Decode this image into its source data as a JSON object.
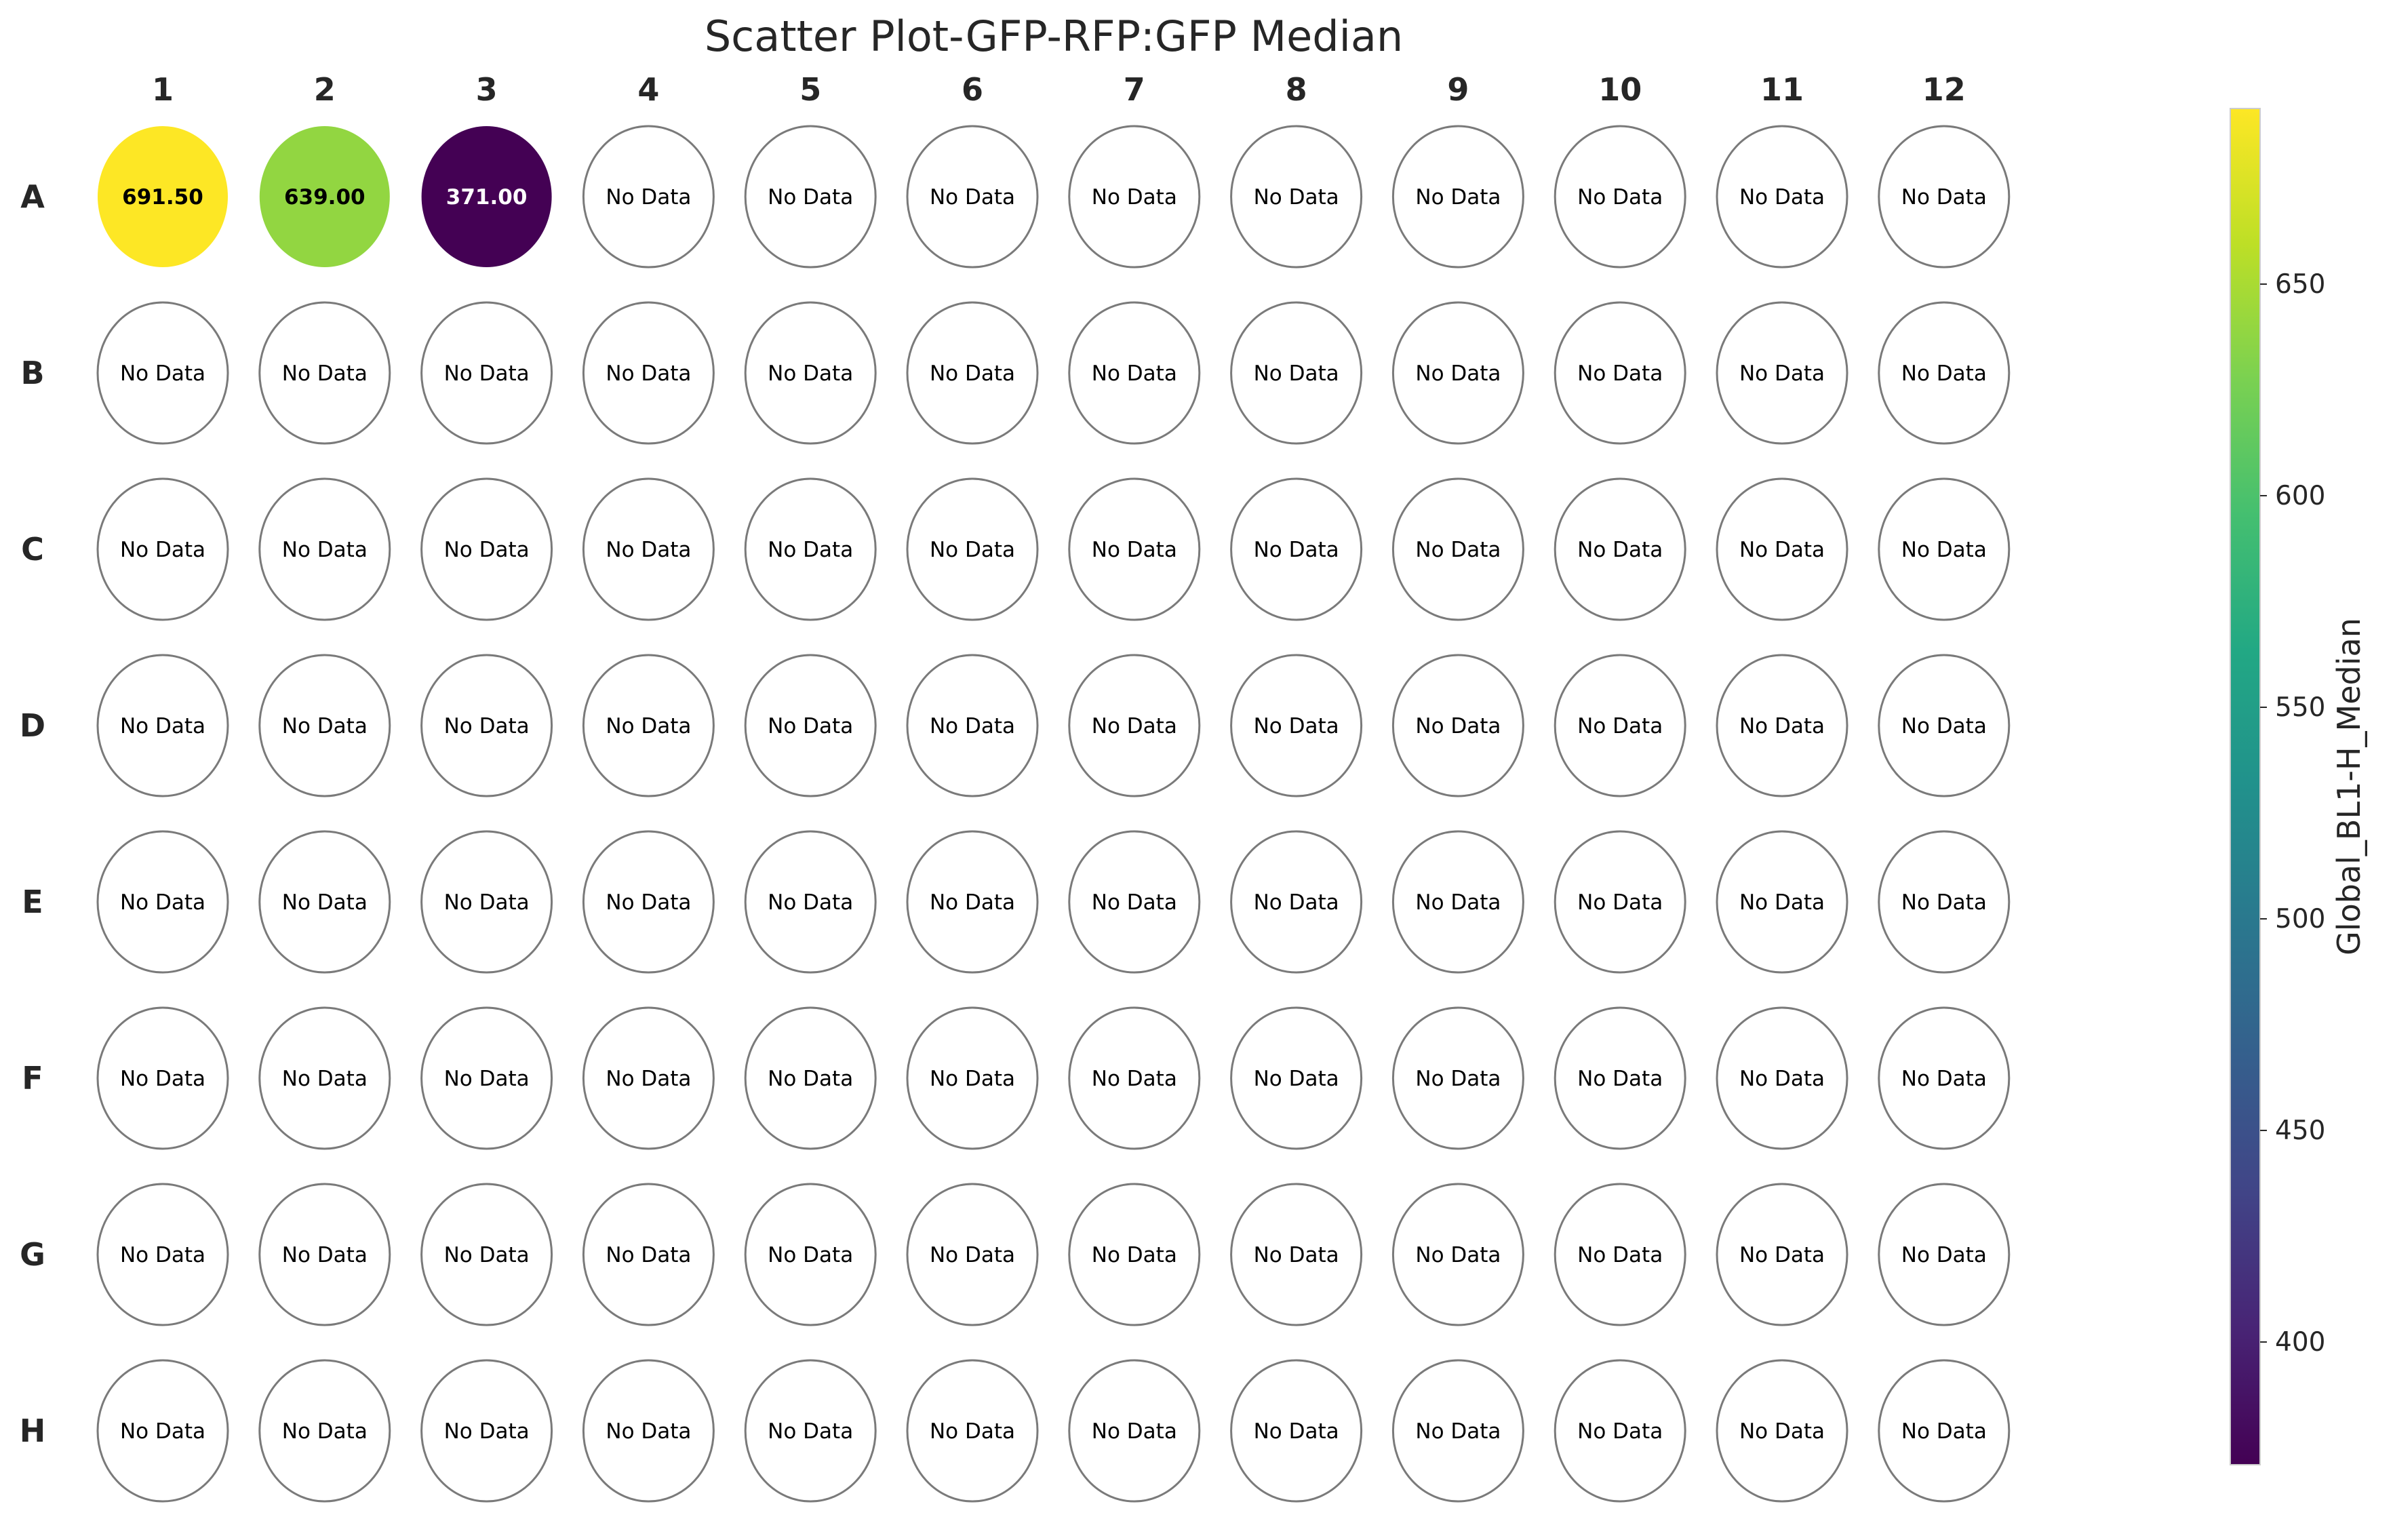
{
  "chart_data": {
    "type": "heatmap",
    "title": "Scatter Plot-GFP-RFP:GFP Median",
    "columns": [
      "1",
      "2",
      "3",
      "4",
      "5",
      "6",
      "7",
      "8",
      "9",
      "10",
      "11",
      "12"
    ],
    "rows": [
      "A",
      "B",
      "C",
      "D",
      "E",
      "F",
      "G",
      "H"
    ],
    "wells": [
      {
        "row": "A",
        "col": "1",
        "value": 691.5,
        "label": "691.50"
      },
      {
        "row": "A",
        "col": "2",
        "value": 639.0,
        "label": "639.00"
      },
      {
        "row": "A",
        "col": "3",
        "value": 371.0,
        "label": "371.00"
      }
    ],
    "empty_label": "No Data",
    "colorbar": {
      "label": "Global_BL1-H_Median",
      "colormap": "viridis",
      "range": [
        371.0,
        691.5
      ],
      "ticks": [
        "400",
        "450",
        "500",
        "550",
        "600",
        "650"
      ]
    },
    "colors": {
      "empty_edge": "#7a7a7a",
      "background": "#ffffff"
    }
  }
}
